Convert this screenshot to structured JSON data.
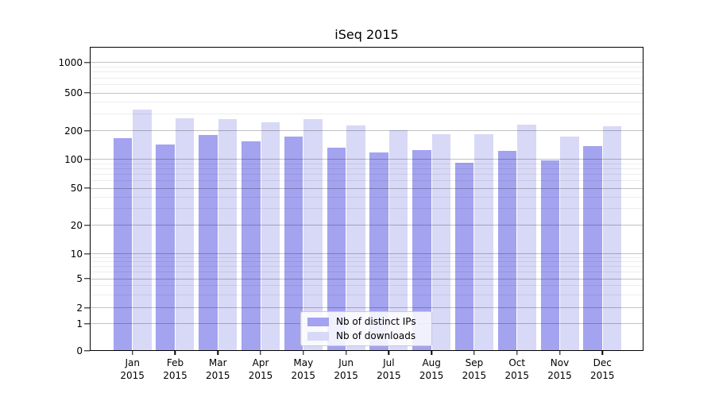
{
  "chart_data": {
    "type": "bar",
    "title": "iSeq 2015",
    "categories": [
      "Jan 2015",
      "Feb 2015",
      "Mar 2015",
      "Apr 2015",
      "May 2015",
      "Jun 2015",
      "Jul 2015",
      "Aug 2015",
      "Sep 2015",
      "Oct 2015",
      "Nov 2015",
      "Dec 2015"
    ],
    "series": [
      {
        "name": "Nb of distinct IPs",
        "color": "#a3a3f0",
        "values": [
          168,
          142,
          180,
          153,
          172,
          133,
          118,
          124,
          92,
          123,
          98,
          138
        ]
      },
      {
        "name": "Nb of downloads",
        "color": "#d8d8f7",
        "values": [
          332,
          272,
          267,
          245,
          264,
          228,
          201,
          184,
          183,
          230,
          172,
          221
        ]
      }
    ],
    "xlabel": "",
    "ylabel": "",
    "yscale": "symlog",
    "yticks": [
      0,
      1,
      2,
      5,
      10,
      20,
      50,
      100,
      200,
      500,
      1000
    ],
    "yticks_minor": [
      3,
      4,
      6,
      7,
      8,
      9,
      30,
      40,
      60,
      70,
      80,
      90,
      300,
      400,
      600,
      700,
      800,
      900
    ],
    "ylim": [
      0,
      1400
    ],
    "grid": "on",
    "legend_position": "lower center"
  }
}
